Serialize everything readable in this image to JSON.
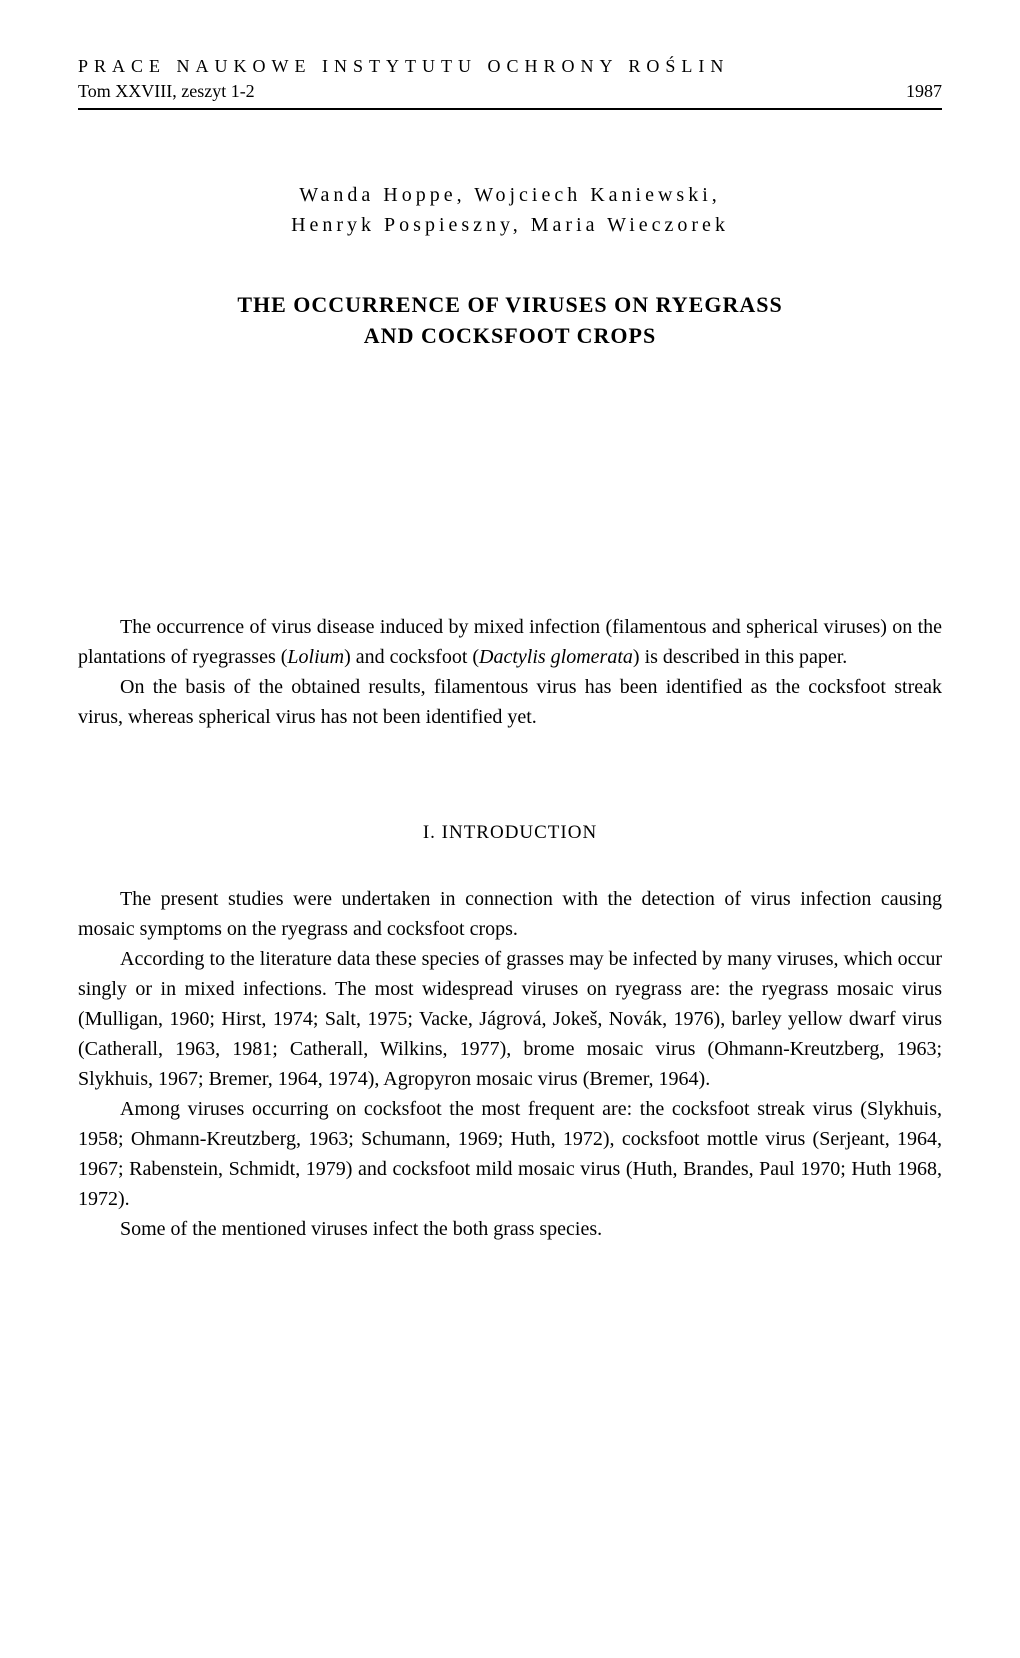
{
  "header": {
    "journal": "PRACE   NAUKOWE   INSTYTUTU   OCHRONY   ROŚLIN",
    "volume": "Tom XXVIII, zeszyt 1-2",
    "year": "1987"
  },
  "authors_line1": "Wanda Hoppe, Wojciech Kaniewski,",
  "authors_line2": "Henryk Pospieszny, Maria Wieczorek",
  "title_line1": "THE OCCURRENCE OF VIRUSES ON RYEGRASS",
  "title_line2": "AND COCKSFOOT CROPS",
  "abstract": {
    "p1_a": "The occurrence of virus disease induced by mixed infection (filamentous and spherical viruses) on the plantations of ryegrasses (",
    "p1_i1": "Lolium",
    "p1_b": ") and cocksfoot (",
    "p1_i2": "Dactylis glomerata",
    "p1_c": ") is described in this paper.",
    "p2": "On the basis of the obtained results, filamentous virus has been identified as the cocksfoot streak virus, whereas spherical virus has not been identified yet."
  },
  "section1": {
    "heading": "I. INTRODUCTION",
    "p1": "The present studies were undertaken in connection with the detection of virus infection causing mosaic symptoms on the ryegrass and cocksfoot crops.",
    "p2": "According to the literature data these species of grasses may be infected by many viruses, which occur singly or in mixed infections. The most widespread viruses on ryegrass are: the ryegrass mosaic virus (Mulligan, 1960; Hirst, 1974; Salt, 1975; Vacke, Jágrová, Jokeš, Novák, 1976), barley yellow dwarf virus (Catherall, 1963, 1981; Catherall, Wilkins, 1977), brome mosaic virus (Ohmann-Kreutzberg, 1963; Slykhuis, 1967; Bremer, 1964, 1974), Agropyron mosaic virus (Bremer, 1964).",
    "p3": "Among viruses occurring on cocksfoot the most frequent are: the cocksfoot streak virus (Slykhuis, 1958; Ohmann-Kreutzberg, 1963; Schumann, 1969; Huth, 1972), cocksfoot mottle virus (Serjeant, 1964, 1967; Rabenstein, Schmidt, 1979) and cocksfoot mild mosaic virus (Huth, Brandes, Paul 1970; Huth 1968, 1972).",
    "p4": "Some of the mentioned viruses infect the both grass species."
  },
  "colors": {
    "background": "#ffffff",
    "text": "#000000",
    "rule": "#000000"
  },
  "typography": {
    "body_fontsize": 20,
    "title_fontsize": 22,
    "header_fontsize": 18,
    "heading_fontsize": 19,
    "authors_fontsize": 20,
    "font_family": "Georgia, Times New Roman, serif"
  }
}
